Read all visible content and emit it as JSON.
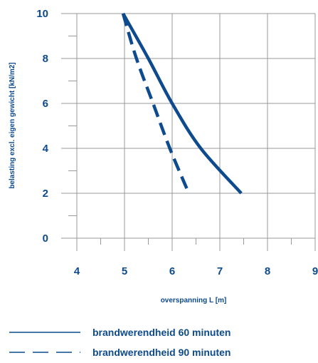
{
  "colors": {
    "series": "#0d4a8e",
    "grid": "#9a9a9a"
  },
  "chart_data": {
    "type": "line",
    "xlabel": "overspanning L [m]",
    "ylabel": "belasting excl. eigen gewicht [kN/m2]",
    "xlim": [
      4,
      9
    ],
    "ylim": [
      0,
      10
    ],
    "x_ticks": [
      "4",
      "5",
      "6",
      "7",
      "8",
      "9"
    ],
    "y_ticks": [
      "0",
      "2",
      "4",
      "6",
      "8",
      "10"
    ],
    "grid": true,
    "legend_position": "bottom",
    "series": [
      {
        "name": "brandwerendheid 60 minuten",
        "style": "solid",
        "points": [
          [
            4.97,
            10
          ],
          [
            5.5,
            8
          ],
          [
            6.0,
            6
          ],
          [
            6.6,
            4
          ],
          [
            7.45,
            2
          ]
        ]
      },
      {
        "name": "brandwerendheid 90 minuten",
        "style": "dashed",
        "points": [
          [
            4.97,
            10
          ],
          [
            5.25,
            8
          ],
          [
            5.6,
            6
          ],
          [
            5.95,
            4
          ],
          [
            6.35,
            2
          ]
        ]
      }
    ]
  }
}
